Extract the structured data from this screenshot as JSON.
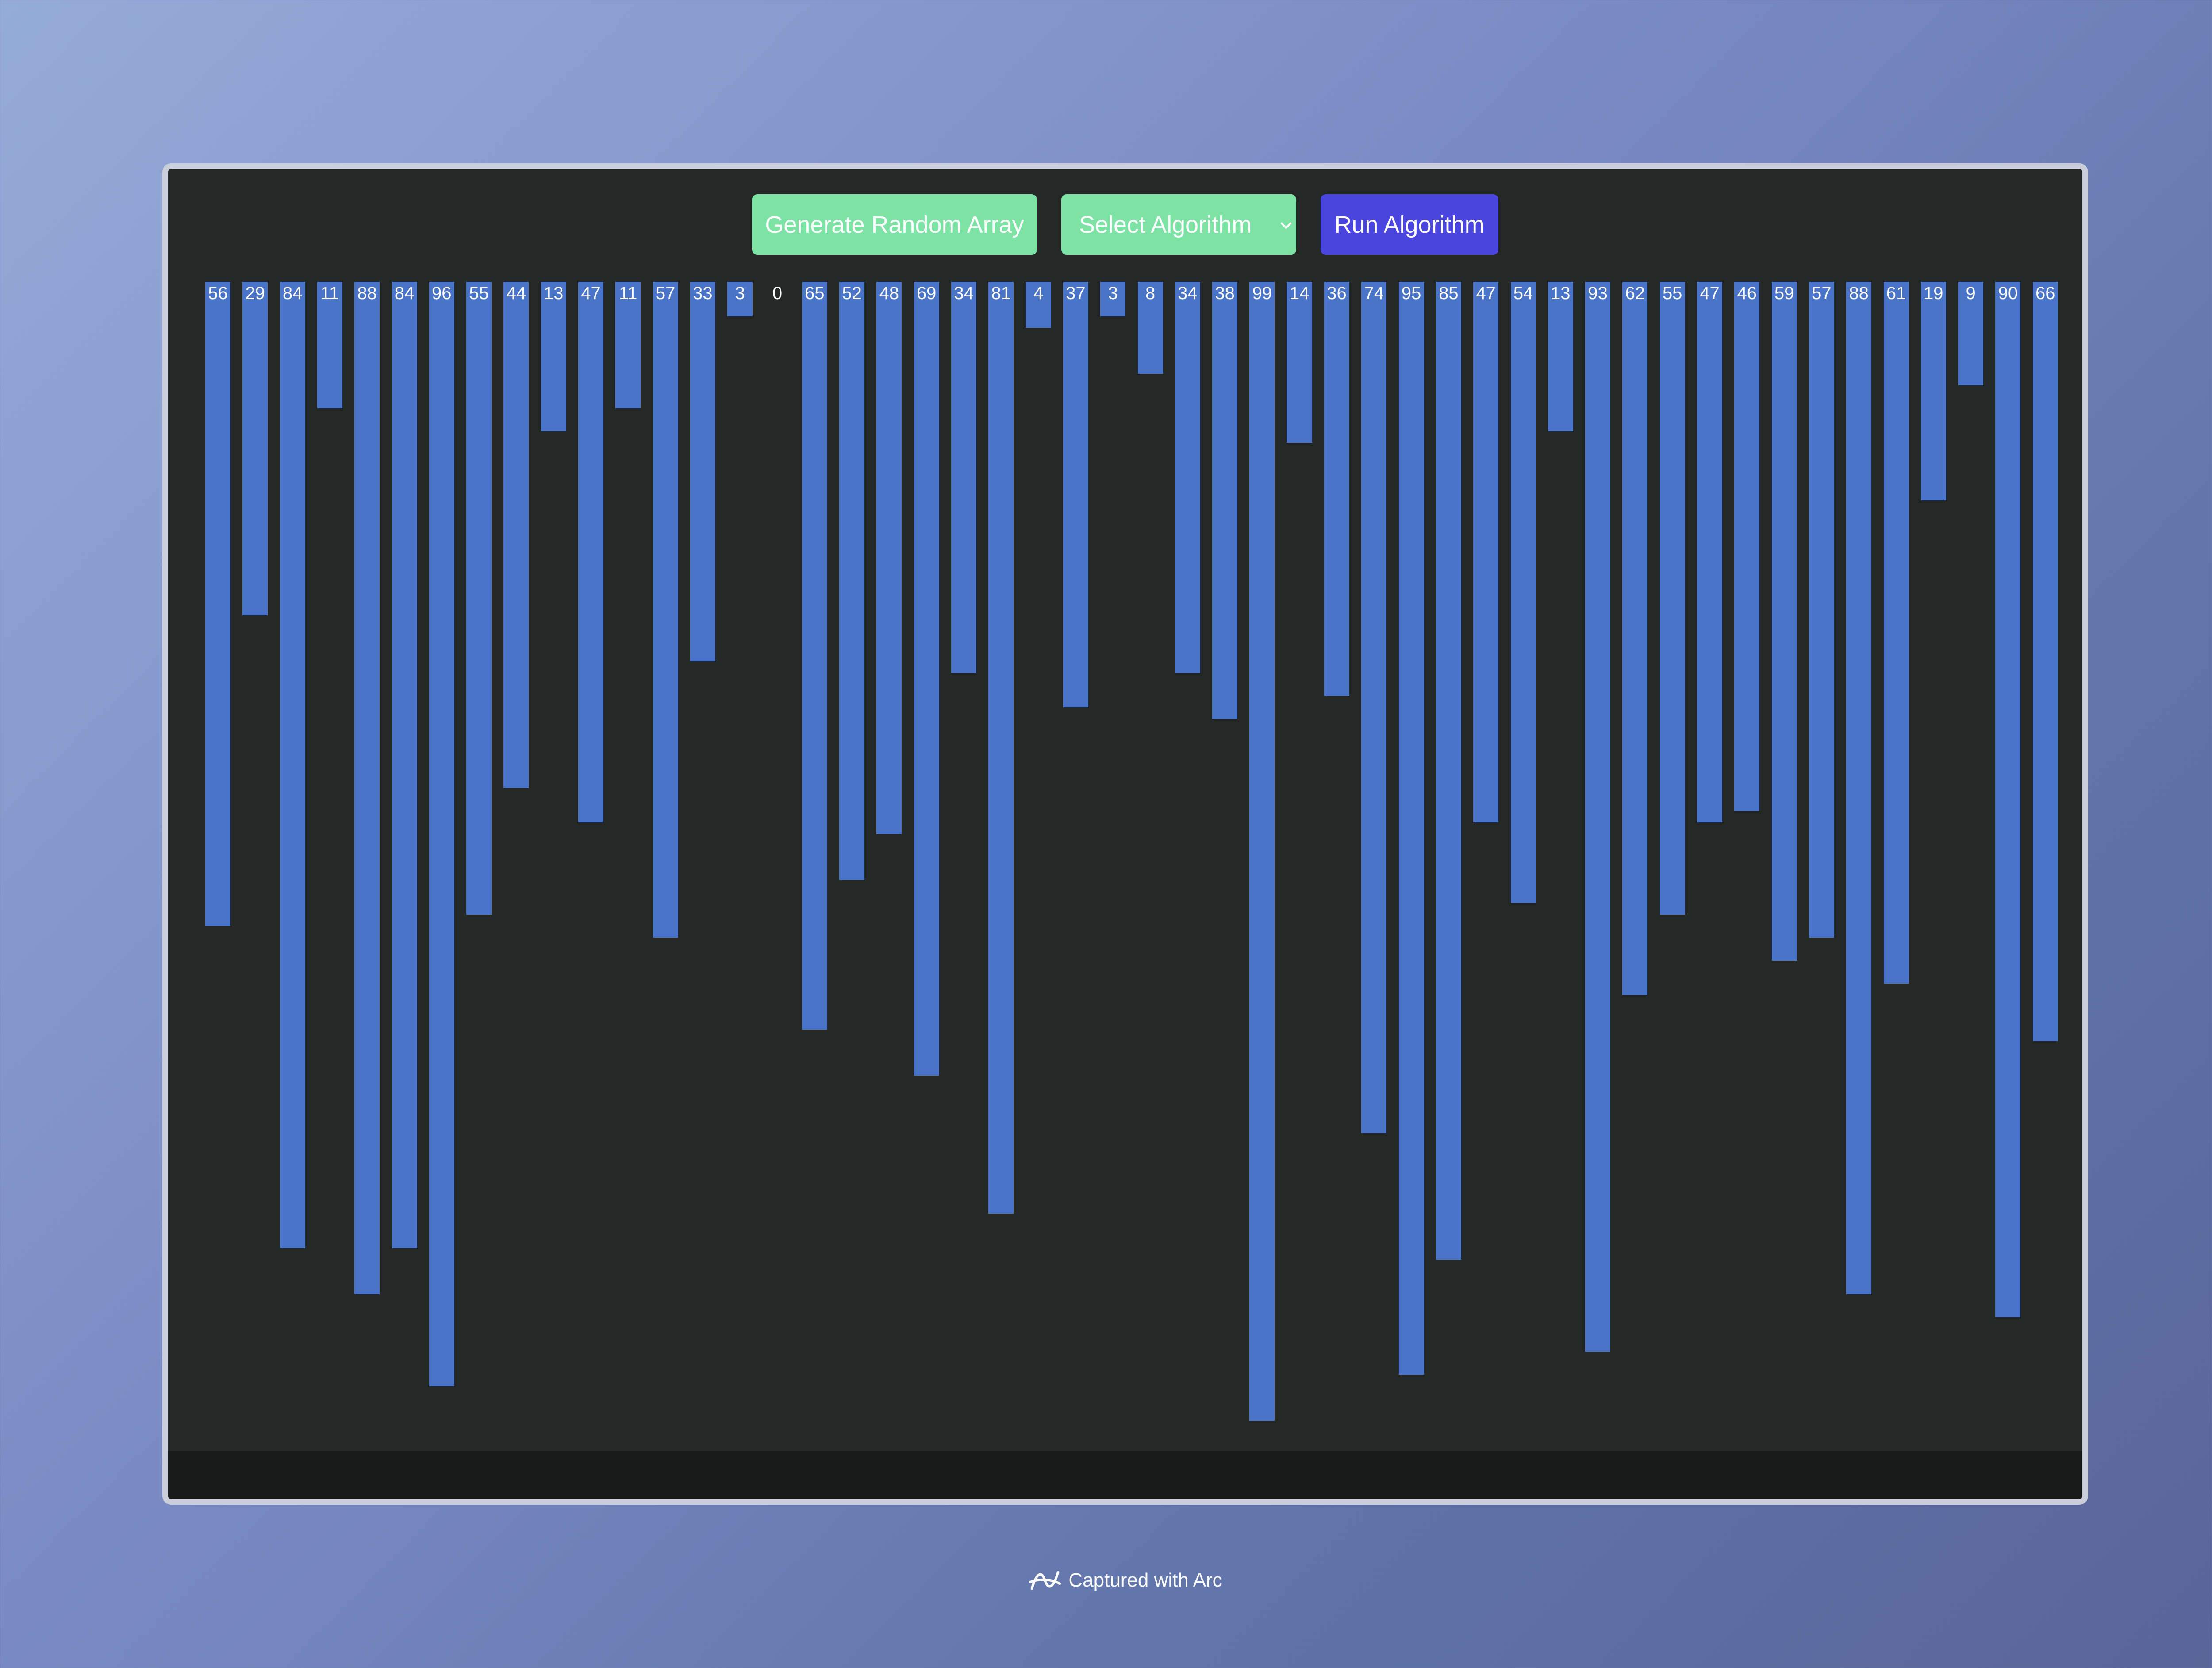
{
  "toolbar": {
    "generate_label": "Generate Random Array",
    "select_label": "Select Algorithm",
    "run_label": "Run Algorithm"
  },
  "array": {
    "values": [
      56,
      29,
      84,
      11,
      88,
      84,
      96,
      55,
      44,
      13,
      47,
      11,
      57,
      33,
      3,
      0,
      65,
      52,
      48,
      69,
      34,
      81,
      4,
      37,
      3,
      8,
      34,
      38,
      99,
      14,
      36,
      74,
      95,
      85,
      47,
      54,
      13,
      93,
      62,
      55,
      47,
      46,
      59,
      57,
      88,
      61,
      19,
      9,
      90,
      66
    ]
  },
  "caption": {
    "text": "Captured with Arc",
    "icon": "arc-logo-icon"
  },
  "colors": {
    "bar": "#4a74c8",
    "button_green": "#7de3a5",
    "button_indigo": "#4b45e0",
    "panel": "#232725"
  }
}
